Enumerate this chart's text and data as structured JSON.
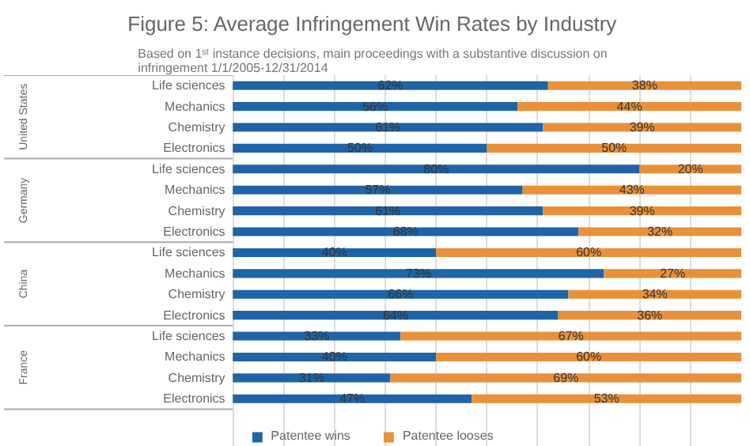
{
  "chart_data": {
    "type": "bar",
    "orientation": "horizontal",
    "stacked": true,
    "title": "Figure 5: Average Infringement Win Rates by Industry",
    "subtitle": "Based on 1ˢᵗ instance decisions, main proceedings with a substantive discussion on\ninfringement 1/1/2005-12/31/2014",
    "categories": [
      "Life sciences",
      "Mechanics",
      "Chemistry",
      "Electronics",
      "Life sciences",
      "Mechanics",
      "Chemistry",
      "Electronics",
      "Life sciences",
      "Mechanics",
      "Chemistry",
      "Electronics",
      "Life sciences",
      "Mechanics",
      "Chemistry",
      "Electronics"
    ],
    "annotations": [
      "United States",
      "Germany",
      "China",
      "France"
    ],
    "series": [
      {
        "name": "Patentee wins",
        "color": "#1f64a6",
        "values": [
          62,
          56,
          61,
          50,
          80,
          57,
          61,
          68,
          40,
          73,
          66,
          64,
          33,
          40,
          31,
          47
        ],
        "value_labels": [
          "62%",
          "56%",
          "61%",
          "50%",
          "80%",
          "57%",
          "61%",
          "68%",
          "40%",
          "73%",
          "66%",
          "64%",
          "33%",
          "40%",
          "31%",
          "47%"
        ]
      },
      {
        "name": "Patentee looses",
        "color": "#e8913a",
        "values": [
          38,
          44,
          39,
          50,
          20,
          43,
          39,
          32,
          60,
          27,
          34,
          36,
          67,
          60,
          69,
          53
        ],
        "value_labels": [
          "38%",
          "44%",
          "39%",
          "50%",
          "20%",
          "43%",
          "39%",
          "32%",
          "60%",
          "27%",
          "34%",
          "36%",
          "67%",
          "60%",
          "69%",
          "53%"
        ]
      }
    ],
    "tick_labels": "y",
    "grid": "x",
    "legend": "bottom"
  }
}
